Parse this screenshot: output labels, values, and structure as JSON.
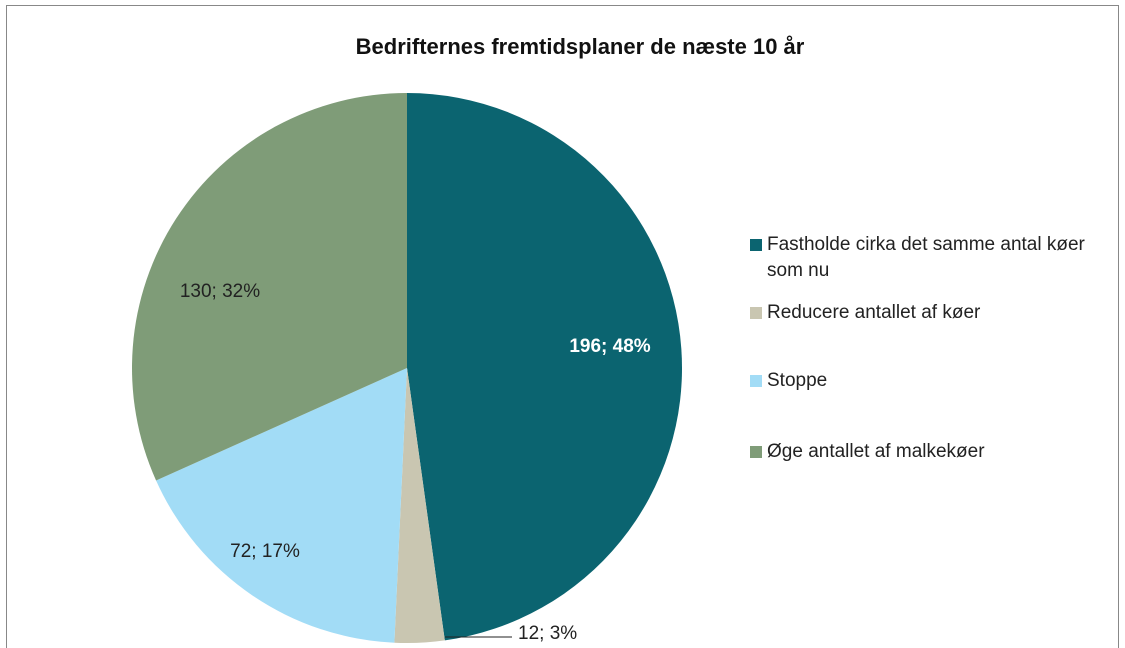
{
  "chart_data": {
    "type": "pie",
    "title": "Bedrifternes fremtidsplaner de næste 10 år",
    "categories": [
      "Fastholde cirka det samme antal køer som nu",
      "Reducere antallet af køer",
      "Stoppe",
      "Øge antallet af malkekøer"
    ],
    "values": [
      196,
      12,
      72,
      130
    ],
    "value_labels": [
      "196; 48%",
      "12; 3%",
      "72; 17%",
      "130; 32%"
    ],
    "colors": [
      "#0b6470",
      "#c9c6b1",
      "#a2dcf6",
      "#7f9c78"
    ],
    "legend": "right"
  }
}
